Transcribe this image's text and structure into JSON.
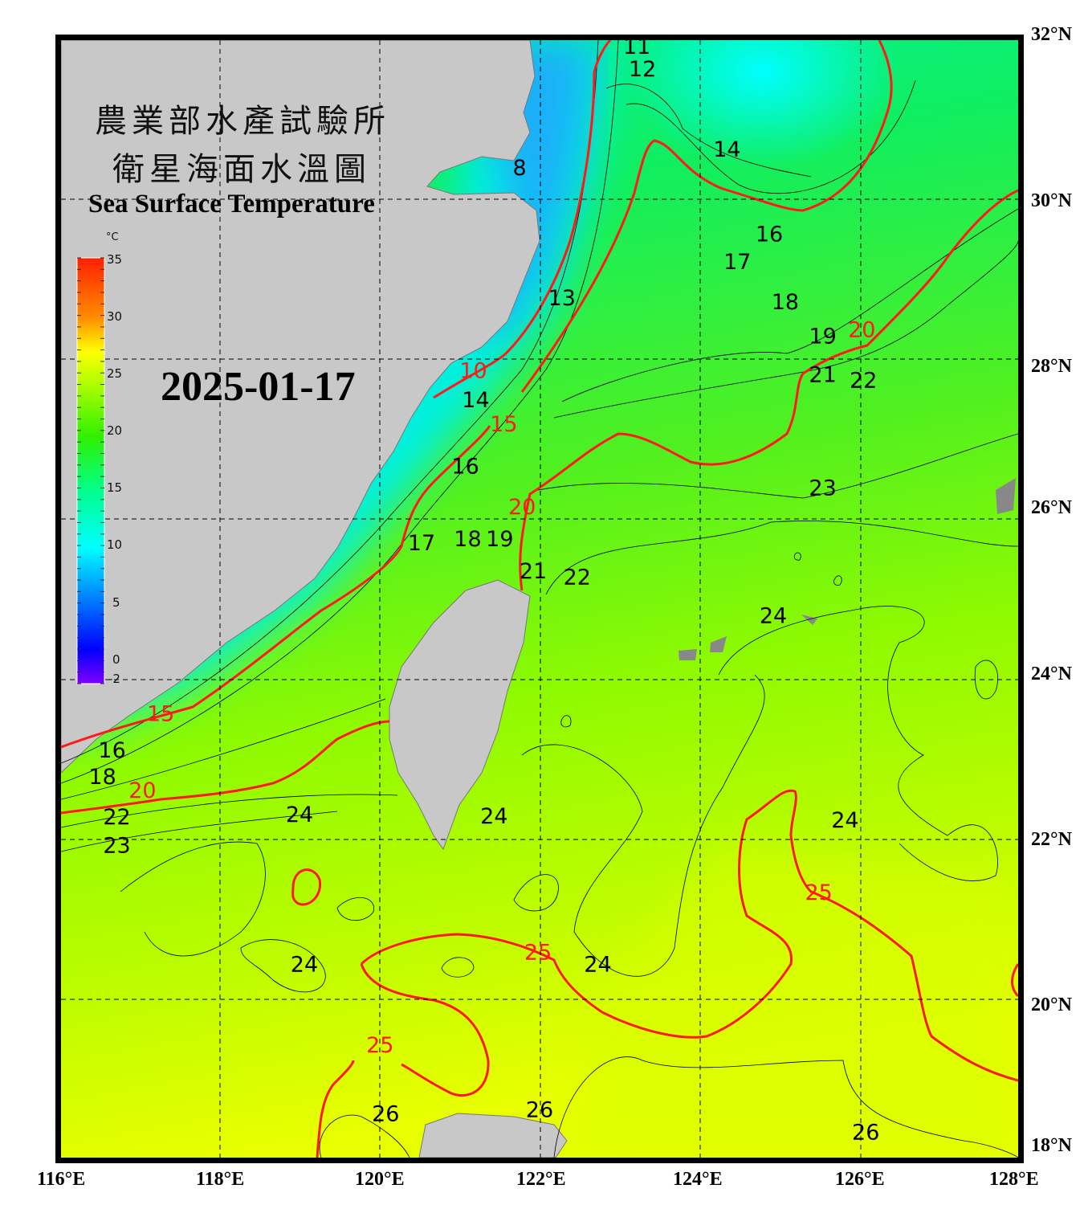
{
  "title": {
    "line1": "農業部水產試驗所",
    "line2": "衛星海面水溫圖",
    "english": "Sea Surface Temperature",
    "date": "2025-01-17"
  },
  "colorbar": {
    "unit": "°C",
    "min": -2,
    "max": 35,
    "ticks": [
      "35",
      "30",
      "25",
      "20",
      "15",
      "10",
      "5",
      "0",
      "-2"
    ],
    "colors": [
      "#ff2000",
      "#ff8c00",
      "#ffff00",
      "#c0ff00",
      "#30f000",
      "#00ff90",
      "#00ffff",
      "#0080ff",
      "#0000ff",
      "#8000ff"
    ]
  },
  "axes": {
    "lon_labels": [
      "116°E",
      "118°E",
      "120°E",
      "122°E",
      "124°E",
      "126°E",
      "128°E"
    ],
    "lat_labels": [
      "32°N",
      "30°N",
      "28°N",
      "26°N",
      "24°N",
      "22°N",
      "20°N",
      "18°N"
    ],
    "lon_range": [
      116,
      128
    ],
    "lat_range": [
      18,
      32
    ],
    "grid": "dashed every 2°"
  },
  "colors": {
    "land": "#c8c8c8",
    "contour": "#000000",
    "major_contour": "#ff1a1a",
    "frame": "#000000"
  },
  "contour_labels": [
    {
      "text": "11",
      "lon": 123.22,
      "lat": 31.93,
      "major": false
    },
    {
      "text": "12",
      "lon": 123.29,
      "lat": 31.65,
      "major": false
    },
    {
      "text": "14",
      "lon": 124.35,
      "lat": 30.64,
      "major": false
    },
    {
      "text": "16",
      "lon": 124.88,
      "lat": 29.58,
      "major": false
    },
    {
      "text": "17",
      "lon": 124.48,
      "lat": 29.23,
      "major": false
    },
    {
      "text": "18",
      "lon": 125.08,
      "lat": 28.73,
      "major": false
    },
    {
      "text": "19",
      "lon": 125.55,
      "lat": 28.3,
      "major": false
    },
    {
      "text": "20",
      "lon": 126.04,
      "lat": 28.38,
      "major": true
    },
    {
      "text": "21",
      "lon": 125.55,
      "lat": 27.82,
      "major": false
    },
    {
      "text": "22",
      "lon": 126.06,
      "lat": 27.75,
      "major": false
    },
    {
      "text": "23",
      "lon": 125.55,
      "lat": 26.4,
      "major": false
    },
    {
      "text": "13",
      "lon": 122.28,
      "lat": 28.78,
      "major": false
    },
    {
      "text": "8",
      "lon": 121.75,
      "lat": 30.41,
      "major": false
    },
    {
      "text": "10",
      "lon": 121.17,
      "lat": 27.87,
      "major": true
    },
    {
      "text": "14",
      "lon": 121.3,
      "lat": 27.37,
      "major": false
    },
    {
      "text": "15",
      "lon": 121.45,
      "lat": 27.42,
      "major": true
    },
    {
      "text": "16",
      "lon": 121.07,
      "lat": 26.67,
      "major": false
    },
    {
      "text": "17",
      "lon": 120.52,
      "lat": 25.71,
      "major": false
    },
    {
      "text": "18",
      "lon": 121.3,
      "lat": 25.81,
      "major": false
    },
    {
      "text": "19",
      "lon": 121.45,
      "lat": 25.83,
      "major": false
    },
    {
      "text": "20",
      "lon": 121.6,
      "lat": 25.96,
      "major": true
    },
    {
      "text": "21",
      "lon": 121.98,
      "lat": 25.36,
      "major": false
    },
    {
      "text": "22",
      "lon": 122.25,
      "lat": 25.28,
      "major": false
    },
    {
      "text": "15",
      "lon": 117.25,
      "lat": 23.57,
      "major": true
    },
    {
      "text": "16",
      "lon": 116.64,
      "lat": 22.99,
      "major": false
    },
    {
      "text": "18",
      "lon": 116.64,
      "lat": 22.75,
      "major": false
    },
    {
      "text": "20",
      "lon": 116.9,
      "lat": 22.56,
      "major": true
    },
    {
      "text": "22",
      "lon": 116.7,
      "lat": 22.24,
      "major": false
    },
    {
      "text": "23",
      "lon": 116.7,
      "lat": 21.96,
      "major": false
    },
    {
      "text": "24",
      "lon": 124.93,
      "lat": 24.8,
      "major": false
    },
    {
      "text": "24",
      "lon": 125.83,
      "lat": 22.24,
      "major": false
    },
    {
      "text": "25",
      "lon": 125.5,
      "lat": 21.33,
      "major": true
    },
    {
      "text": "24",
      "lon": 121.43,
      "lat": 22.29,
      "major": false
    },
    {
      "text": "24",
      "lon": 118.99,
      "lat": 22.31,
      "major": false
    },
    {
      "text": "24",
      "lon": 119.05,
      "lat": 20.43,
      "major": false
    },
    {
      "text": "25",
      "lon": 121.98,
      "lat": 20.58,
      "major": true
    },
    {
      "text": "24",
      "lon": 122.73,
      "lat": 20.43,
      "major": false
    },
    {
      "text": "25",
      "lon": 120.0,
      "lat": 19.42,
      "major": true
    },
    {
      "text": "26",
      "lon": 120.07,
      "lat": 18.56,
      "major": false
    },
    {
      "text": "26",
      "lon": 122.0,
      "lat": 18.61,
      "major": false
    },
    {
      "text": "26",
      "lon": 126.09,
      "lat": 18.33,
      "major": false
    }
  ]
}
